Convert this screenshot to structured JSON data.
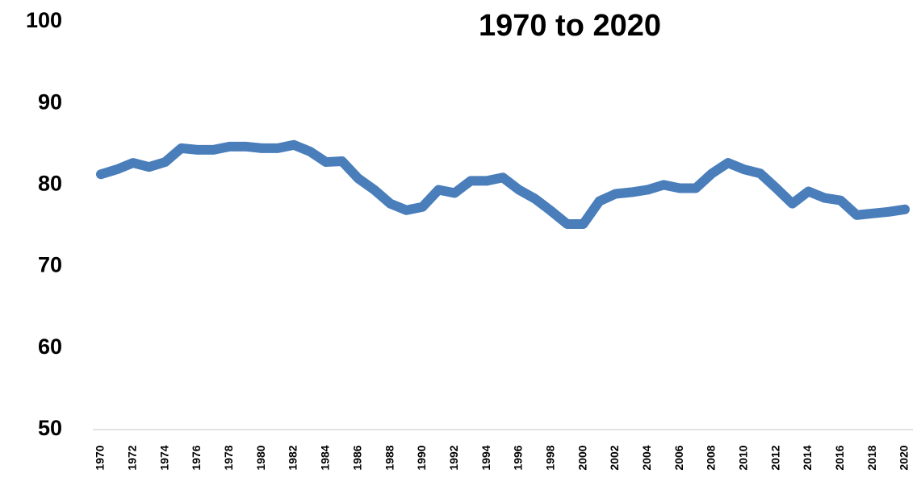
{
  "chart_data": {
    "type": "line",
    "title": "1970 to 2020",
    "categories": [
      "1970",
      null,
      "1972",
      null,
      "1974",
      null,
      "1976",
      null,
      "1978",
      null,
      "1980",
      null,
      "1982",
      null,
      "1984",
      null,
      "1986",
      null,
      "1988",
      null,
      "1990",
      null,
      "1992",
      null,
      "1994",
      null,
      "1996",
      null,
      "1998",
      null,
      "2000",
      null,
      "2002",
      null,
      "2004",
      null,
      "2006",
      null,
      "2008",
      null,
      "2010",
      null,
      "2012",
      null,
      "2014",
      null,
      "2016",
      null,
      "2018",
      null,
      "2020"
    ],
    "values": [
      81.3,
      81.9,
      82.7,
      82.2,
      82.8,
      84.5,
      84.3,
      84.3,
      84.7,
      84.7,
      84.5,
      84.5,
      84.9,
      84.1,
      82.8,
      82.9,
      80.8,
      79.4,
      77.7,
      76.9,
      77.3,
      79.4,
      79.0,
      80.5,
      80.5,
      80.9,
      79.4,
      78.3,
      76.8,
      75.2,
      75.2,
      78.0,
      78.9,
      79.1,
      79.4,
      80.0,
      79.6,
      79.6,
      81.4,
      82.7,
      81.9,
      81.4,
      79.6,
      77.7,
      79.2,
      78.4,
      78.1,
      76.3,
      76.5,
      76.7,
      77.0
    ],
    "color": "#4a7ebb",
    "ylim": [
      50,
      100
    ],
    "yticks": [
      50,
      60,
      70,
      80,
      90,
      100
    ],
    "grid": false
  }
}
